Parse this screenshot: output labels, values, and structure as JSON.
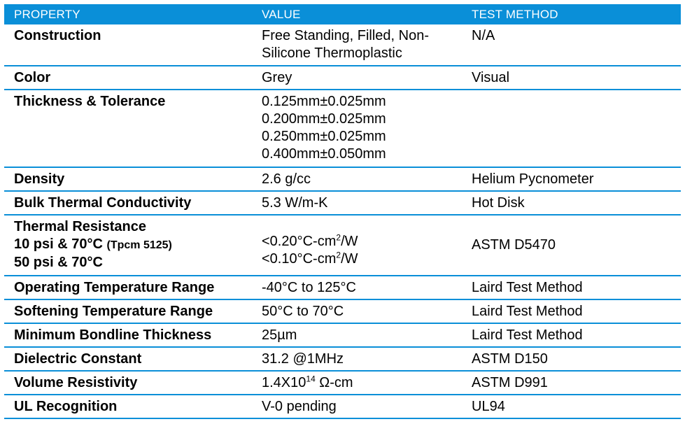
{
  "header": {
    "property": "PROPERTY",
    "value": "VALUE",
    "test_method": "TEST METHOD"
  },
  "rows": [
    {
      "property": "Construction",
      "value_lines": [
        "Free Standing, Filled, Non-",
        "Silicone Thermoplastic"
      ],
      "method": "N/A"
    },
    {
      "property": "Color",
      "value": "Grey",
      "method": "Visual"
    },
    {
      "property": "Thickness & Tolerance",
      "value_lines": [
        "0.125mm±0.025mm",
        "0.200mm±0.025mm",
        "0.250mm±0.025mm",
        "0.400mm±0.050mm"
      ],
      "method": ""
    },
    {
      "property": "Density",
      "value": "2.6 g/cc",
      "method": "Helium Pycnometer"
    },
    {
      "property": "Bulk Thermal Conductivity",
      "value": "5.3 W/m-K",
      "method": "Hot Disk"
    },
    {
      "property_lines": [
        "Thermal Resistance",
        "10 psi & 70°C",
        "(Tpcm 5125)",
        "50 psi & 70°C"
      ],
      "value_lines": [
        {
          "base": "<0.20°C-cm",
          "sup": "2",
          "rest": "/W"
        },
        {
          "base": "<0.10°C-cm",
          "sup": "2",
          "rest": "/W"
        }
      ],
      "method": "ASTM D5470"
    },
    {
      "property": "Operating Temperature Range",
      "value": "-40°C to 125°C",
      "method": "Laird Test Method"
    },
    {
      "property": "Softening Temperature Range",
      "value": "50°C to 70°C",
      "method": "Laird Test Method"
    },
    {
      "property": "Minimum Bondline Thickness",
      "value": "25µm",
      "method": "Laird Test Method"
    },
    {
      "property": "Dielectric Constant",
      "value": "31.2 @1MHz",
      "method": "ASTM D150"
    },
    {
      "property": "Volume Resistivity",
      "value_parts": {
        "base": "1.4X10",
        "sup": "14",
        "rest": " Ω-cm"
      },
      "method": "ASTM D991"
    },
    {
      "property": "UL Recognition",
      "value": "V-0 pending",
      "method": "UL94"
    }
  ],
  "colors": {
    "header_bg": "#0a8fd8",
    "row_divider": "#0a8fd8",
    "header_text": "#ffffff"
  }
}
